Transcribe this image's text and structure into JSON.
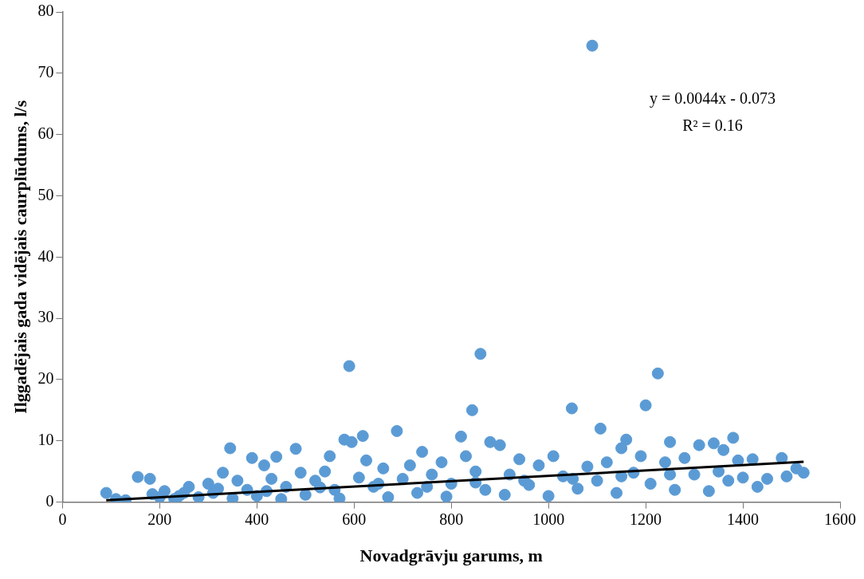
{
  "chart_data": {
    "type": "scatter",
    "xlabel": "Novadgrāvju garums, m",
    "ylabel": "Ilggadējais gada vidējais caurplūdums, l/s",
    "annotations": [
      "y = 0.0044x - 0.073",
      "R² = 0.16"
    ],
    "xlim": [
      0,
      1600
    ],
    "xticks": [
      0,
      200,
      400,
      600,
      800,
      1000,
      1200,
      1400,
      1600
    ],
    "ylim": [
      0,
      80
    ],
    "yticks": [
      0,
      10,
      20,
      30,
      40,
      50,
      60,
      70,
      80
    ],
    "grid": false,
    "legend": false,
    "marker": "circle",
    "series": [
      {
        "color": "#5b9bd5",
        "x": [
          90,
          110,
          130,
          155,
          180,
          185,
          200,
          210,
          230,
          240,
          250,
          260,
          280,
          300,
          310,
          320,
          330,
          345,
          350,
          360,
          380,
          390,
          400,
          415,
          420,
          430,
          440,
          450,
          460,
          480,
          490,
          500,
          520,
          530,
          540,
          550,
          560,
          570,
          580,
          590,
          595,
          610,
          618,
          625,
          640,
          650,
          660,
          670,
          688,
          700,
          715,
          730,
          740,
          750,
          760,
          780,
          790,
          800,
          820,
          830,
          843,
          850,
          850,
          860,
          870,
          880,
          900,
          910,
          920,
          940,
          950,
          960,
          980,
          1000,
          1010,
          1030,
          1048,
          1050,
          1060,
          1080,
          1090,
          1100,
          1107,
          1120,
          1140,
          1150,
          1150,
          1160,
          1175,
          1190,
          1200,
          1210,
          1225,
          1240,
          1250,
          1250,
          1260,
          1280,
          1300,
          1310,
          1330,
          1340,
          1350,
          1360,
          1370,
          1380,
          1390,
          1400,
          1420,
          1430,
          1450,
          1480,
          1490,
          1510,
          1525
        ],
        "values": [
          1.5,
          0.5,
          0.3,
          4.1,
          3.8,
          1.3,
          0.8,
          1.8,
          0.5,
          1.0,
          1.5,
          2.5,
          0.8,
          3.0,
          1.5,
          2.2,
          4.8,
          8.8,
          0.6,
          3.5,
          2.0,
          7.2,
          1.0,
          6.0,
          1.8,
          3.8,
          7.4,
          0.5,
          2.5,
          8.7,
          4.8,
          1.2,
          3.5,
          2.4,
          5.0,
          7.5,
          2.0,
          0.6,
          10.2,
          22.2,
          9.8,
          4.0,
          10.8,
          6.8,
          2.5,
          3.0,
          5.5,
          0.8,
          11.6,
          3.8,
          6.0,
          1.5,
          8.2,
          2.5,
          4.5,
          6.5,
          0.9,
          3.0,
          10.7,
          7.5,
          15.0,
          5.0,
          3.2,
          24.2,
          2.0,
          9.8,
          9.3,
          1.2,
          4.5,
          7.0,
          3.5,
          2.8,
          6.0,
          1.0,
          7.5,
          4.2,
          15.3,
          3.8,
          2.2,
          5.8,
          74.5,
          3.5,
          12.0,
          6.5,
          1.5,
          8.8,
          4.2,
          10.2,
          4.8,
          7.5,
          15.8,
          3.0,
          21.0,
          6.5,
          9.8,
          4.5,
          2.0,
          7.2,
          4.5,
          9.3,
          1.8,
          9.6,
          5.0,
          8.5,
          3.5,
          10.5,
          6.8,
          4.0,
          7.0,
          2.5,
          3.8,
          7.2,
          4.2,
          5.5,
          4.8
        ]
      },
      {
        "type": "line",
        "color": "#000000",
        "marker": "none",
        "line_style": "solid",
        "x": [
          90,
          1525
        ],
        "values": [
          0.3,
          6.6
        ]
      }
    ]
  }
}
